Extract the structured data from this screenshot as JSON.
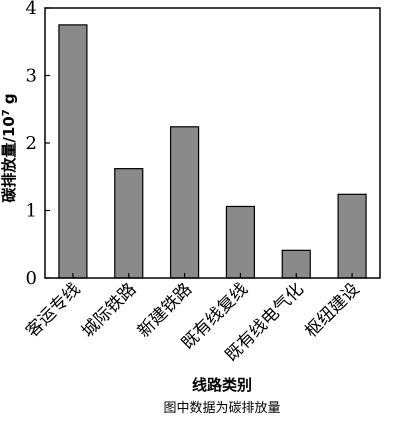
{
  "chart_data": {
    "type": "bar",
    "categories": [
      "客运专线",
      "城际铁路",
      "新建铁路",
      "既有线复线",
      "既有线电气化",
      "枢纽建设"
    ],
    "values": [
      3.75,
      1.62,
      2.24,
      1.06,
      0.41,
      1.24
    ],
    "ylim": [
      0,
      4
    ],
    "yticks": [
      0,
      1,
      2,
      3,
      4
    ],
    "ylabel_main": "碳排放量/10",
    "ylabel_sup": "7",
    "ylabel_unit": " g",
    "xlabel": "线路类别",
    "caption": "图中数据为碳排放量",
    "bar_color": "#8a8a8a",
    "grid": false
  }
}
